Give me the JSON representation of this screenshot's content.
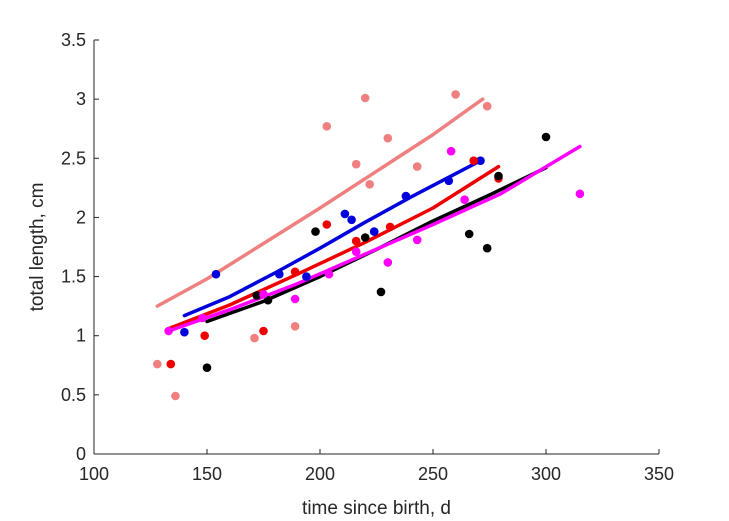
{
  "chart_data": {
    "type": "scatter",
    "title": "",
    "xlabel": "time since birth, d",
    "ylabel": "total length, cm",
    "xlim": [
      100,
      350
    ],
    "ylim": [
      0,
      3.5
    ],
    "xticks": [
      100,
      150,
      200,
      250,
      300,
      350
    ],
    "yticks": [
      0,
      0.5,
      1,
      1.5,
      2,
      2.5,
      3,
      3.5
    ],
    "xtick_labels": [
      "100",
      "150",
      "200",
      "250",
      "300",
      "350"
    ],
    "ytick_labels": [
      "0",
      "0.5",
      "1",
      "1.5",
      "2",
      "2.5",
      "3",
      "3.5"
    ],
    "grid": false,
    "series": [
      {
        "color": "#f08080",
        "points": [
          [
            128,
            0.76
          ],
          [
            136,
            0.49
          ],
          [
            171,
            0.98
          ],
          [
            189,
            1.08
          ],
          [
            203,
            2.77
          ],
          [
            216,
            2.45
          ],
          [
            220,
            3.01
          ],
          [
            222,
            2.28
          ],
          [
            230,
            2.67
          ],
          [
            243,
            2.43
          ],
          [
            260,
            3.04
          ],
          [
            274,
            2.94
          ]
        ],
        "curve": [
          [
            128,
            1.25
          ],
          [
            150,
            1.48
          ],
          [
            175,
            1.78
          ],
          [
            200,
            2.08
          ],
          [
            225,
            2.39
          ],
          [
            250,
            2.7
          ],
          [
            272,
            3.0
          ]
        ]
      },
      {
        "color": "#0000dd",
        "points": [
          [
            140,
            1.03
          ],
          [
            154,
            1.52
          ],
          [
            182,
            1.52
          ],
          [
            194,
            1.5
          ],
          [
            211,
            2.03
          ],
          [
            214,
            1.98
          ],
          [
            224,
            1.88
          ],
          [
            238,
            2.18
          ],
          [
            257,
            2.31
          ],
          [
            271,
            2.48
          ]
        ],
        "curve": [
          [
            140,
            1.17
          ],
          [
            160,
            1.33
          ],
          [
            180,
            1.53
          ],
          [
            200,
            1.74
          ],
          [
            220,
            1.96
          ],
          [
            240,
            2.17
          ],
          [
            260,
            2.37
          ],
          [
            271,
            2.48
          ]
        ]
      },
      {
        "color": "#ee0000",
        "points": [
          [
            134,
            0.76
          ],
          [
            149,
            1.0
          ],
          [
            175,
            1.04
          ],
          [
            189,
            1.54
          ],
          [
            203,
            1.94
          ],
          [
            216,
            1.8
          ],
          [
            231,
            1.92
          ],
          [
            268,
            2.48
          ],
          [
            279,
            2.33
          ]
        ],
        "curve": [
          [
            133,
            1.06
          ],
          [
            160,
            1.26
          ],
          [
            190,
            1.52
          ],
          [
            220,
            1.79
          ],
          [
            250,
            2.08
          ],
          [
            279,
            2.43
          ]
        ]
      },
      {
        "color": "#000000",
        "points": [
          [
            150,
            0.73
          ],
          [
            172,
            1.34
          ],
          [
            177,
            1.3
          ],
          [
            198,
            1.88
          ],
          [
            220,
            1.83
          ],
          [
            227,
            1.37
          ],
          [
            266,
            1.86
          ],
          [
            274,
            1.74
          ],
          [
            279,
            2.35
          ],
          [
            300,
            2.68
          ]
        ],
        "curve": [
          [
            150,
            1.12
          ],
          [
            175,
            1.29
          ],
          [
            200,
            1.5
          ],
          [
            225,
            1.73
          ],
          [
            250,
            1.97
          ],
          [
            275,
            2.19
          ],
          [
            300,
            2.42
          ]
        ]
      },
      {
        "color": "#ff00ff",
        "points": [
          [
            133,
            1.04
          ],
          [
            148,
            1.15
          ],
          [
            175,
            1.35
          ],
          [
            189,
            1.31
          ],
          [
            204,
            1.52
          ],
          [
            216,
            1.71
          ],
          [
            230,
            1.62
          ],
          [
            243,
            1.81
          ],
          [
            258,
            2.56
          ],
          [
            264,
            2.15
          ],
          [
            315,
            2.2
          ]
        ],
        "curve": [
          [
            133,
            1.04
          ],
          [
            160,
            1.22
          ],
          [
            190,
            1.44
          ],
          [
            220,
            1.69
          ],
          [
            250,
            1.94
          ],
          [
            280,
            2.2
          ],
          [
            315,
            2.6
          ]
        ]
      }
    ]
  }
}
